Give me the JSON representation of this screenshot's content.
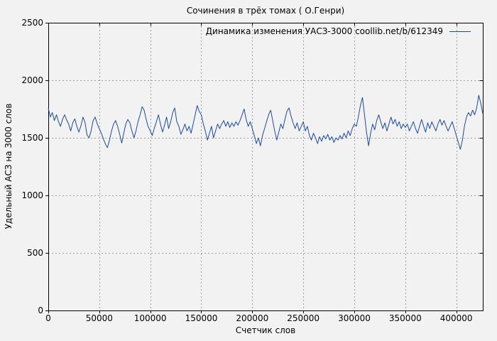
{
  "colors": {
    "background": "#f2f2f2",
    "plot_border": "#000000",
    "grid": "#9f9f9f",
    "text": "#000000",
    "series": "#1d4a9e"
  },
  "chart_data": {
    "type": "line",
    "title": "Сочинения в трёх томах ( О.Генри)",
    "xlabel": "Счетчик слов",
    "ylabel": "Удельный АСЗ на 3000 слов",
    "legend_entries": [
      {
        "label": "Динамика изменения УАСЗ-3000 coollib.net/b/612349",
        "color": "#1d4a9e"
      }
    ],
    "legend_position": "top-right-inside",
    "grid": "dotted",
    "xlim": [
      0,
      426000
    ],
    "ylim": [
      0,
      2500
    ],
    "x_ticks": [
      0,
      50000,
      100000,
      150000,
      200000,
      250000,
      300000,
      350000,
      400000
    ],
    "y_ticks": [
      0,
      500,
      1000,
      1500,
      2000,
      2500
    ],
    "series": [
      {
        "name": "Динамика изменения УАСЗ-3000 coollib.net/b/612349",
        "color": "#1d4a9e",
        "x_start": 0,
        "x_step": 2000,
        "values": [
          1760,
          1680,
          1720,
          1650,
          1700,
          1640,
          1600,
          1660,
          1700,
          1655,
          1620,
          1560,
          1630,
          1665,
          1600,
          1550,
          1605,
          1680,
          1635,
          1525,
          1500,
          1560,
          1650,
          1680,
          1620,
          1580,
          1540,
          1490,
          1445,
          1415,
          1480,
          1560,
          1620,
          1650,
          1600,
          1530,
          1455,
          1540,
          1620,
          1660,
          1630,
          1560,
          1500,
          1560,
          1640,
          1700,
          1770,
          1740,
          1660,
          1595,
          1560,
          1520,
          1585,
          1640,
          1700,
          1620,
          1550,
          1610,
          1680,
          1580,
          1640,
          1720,
          1760,
          1640,
          1600,
          1530,
          1570,
          1620,
          1560,
          1600,
          1540,
          1620,
          1700,
          1780,
          1730,
          1700,
          1620,
          1560,
          1480,
          1540,
          1600,
          1500,
          1560,
          1620,
          1580,
          1620,
          1650,
          1600,
          1640,
          1590,
          1630,
          1600,
          1640,
          1610,
          1650,
          1700,
          1750,
          1660,
          1600,
          1640,
          1580,
          1520,
          1450,
          1500,
          1430,
          1520,
          1580,
          1640,
          1700,
          1740,
          1650,
          1560,
          1480,
          1550,
          1620,
          1580,
          1660,
          1730,
          1760,
          1690,
          1630,
          1580,
          1630,
          1560,
          1600,
          1640,
          1560,
          1600,
          1520,
          1480,
          1540,
          1500,
          1450,
          1510,
          1470,
          1520,
          1490,
          1530,
          1480,
          1510,
          1460,
          1500,
          1480,
          1520,
          1490,
          1540,
          1500,
          1560,
          1520,
          1580,
          1620,
          1600,
          1680,
          1780,
          1850,
          1700,
          1550,
          1430,
          1540,
          1620,
          1570,
          1650,
          1700,
          1640,
          1580,
          1630,
          1560,
          1620,
          1680,
          1620,
          1660,
          1600,
          1640,
          1580,
          1620,
          1590,
          1620,
          1560,
          1600,
          1640,
          1580,
          1540,
          1600,
          1660,
          1600,
          1550,
          1630,
          1580,
          1640,
          1600,
          1560,
          1620,
          1660,
          1610,
          1650,
          1600,
          1560,
          1600,
          1640,
          1580,
          1520,
          1460,
          1400,
          1480,
          1600,
          1680,
          1720,
          1690,
          1740,
          1700,
          1760,
          1870,
          1800,
          1710
        ]
      }
    ]
  }
}
